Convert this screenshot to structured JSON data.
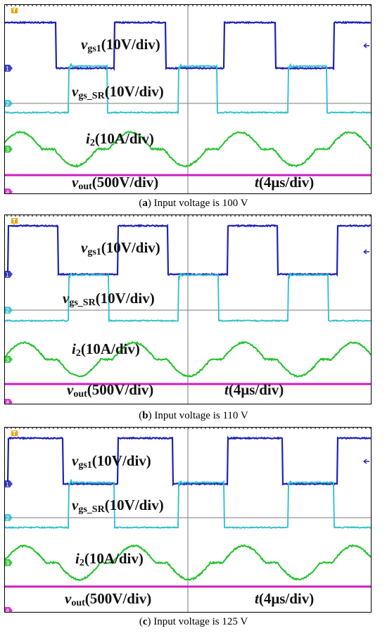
{
  "colors": {
    "vgs1": "#1e22b8",
    "vgs_sr": "#2bbfd0",
    "i2": "#22c22a",
    "vout": "#d11cc4",
    "grid": "#7a7a7a",
    "marker_orange": "#f0a000"
  },
  "channel_markers": [
    "1",
    "2",
    "3",
    "4"
  ],
  "trigger_marker": "T",
  "panels": [
    {
      "id": "a",
      "caption_letter": "a",
      "caption_text": "Input voltage is 100 V",
      "labels": {
        "vgs1_sym": "v",
        "vgs1_sub": "gs1",
        "vgs1_scale": "(10V/div)",
        "vgs_sr_sym": "v",
        "vgs_sr_sub": "gs_SR",
        "vgs_sr_scale": "(10V/div)",
        "i2_sym": "i",
        "i2_sub": "2",
        "i2_scale": "(10A/div)",
        "vout_sym": "v",
        "vout_sub": "out",
        "vout_scale": "(500V/div)",
        "t_sym": "t",
        "t_scale": "(4μs/div)"
      },
      "timing": {
        "period_div": 3.0,
        "vgs1_high": [
          0.0,
          1.4
        ],
        "sr_high": [
          1.75,
          2.8
        ],
        "vgs1_offset": -0.2
      }
    },
    {
      "id": "b",
      "caption_letter": "b",
      "caption_text": "Input voltage is 110 V",
      "labels": {
        "vgs1_sym": "v",
        "vgs1_sub": "gs1",
        "vgs1_scale": "(10V/div)",
        "vgs_sr_sym": "v",
        "vgs_sr_sub": "gs_SR",
        "vgs_sr_scale": "(10V/div)",
        "i2_sym": "i",
        "i2_sub": "2",
        "i2_scale": "(10A/div)",
        "vout_sym": "v",
        "vout_sub": "out",
        "vout_scale": "(500V/div)",
        "t_sym": "t",
        "t_scale": "(4μs/div)"
      },
      "timing": {
        "period_div": 3.0,
        "vgs1_high": [
          0.0,
          1.35
        ],
        "sr_high": [
          1.65,
          2.75
        ],
        "vgs1_offset": -0.1
      }
    },
    {
      "id": "c",
      "caption_letter": "c",
      "caption_text": "Input voltage is 125 V",
      "labels": {
        "vgs1_sym": "v",
        "vgs1_sub": "gs1",
        "vgs1_scale": "(10V/div)",
        "vgs_sr_sym": "v",
        "vgs_sr_sub": "gs_SR",
        "vgs_sr_scale": "(10V/div)",
        "i2_sym": "i",
        "i2_sub": "2",
        "i2_scale": "(10A/div)",
        "vout_sym": "v",
        "vout_sub": "out",
        "vout_scale": "(500V/div)",
        "t_sym": "t",
        "t_scale": "(4μs/div)"
      },
      "timing": {
        "period_div": 3.0,
        "vgs1_high": [
          0.0,
          1.5
        ],
        "sr_high": [
          1.65,
          2.9
        ],
        "vgs1_offset": -0.1
      }
    }
  ],
  "chart_data": [
    {
      "type": "line",
      "title": "",
      "xlabel": "t(4μs/div)",
      "series": [
        {
          "name": "vgs1(10V/div)",
          "description_values": "square wave, two pulses per half-screen"
        },
        {
          "name": "vgs_SR(10V/div)",
          "description_values": "square wave, complementary timing"
        },
        {
          "name": "i2(10A/div)",
          "description_values": "quasi-sinusoidal current"
        },
        {
          "name": "vout(500V/div)",
          "description_values": "flat DC level"
        }
      ]
    }
  ]
}
